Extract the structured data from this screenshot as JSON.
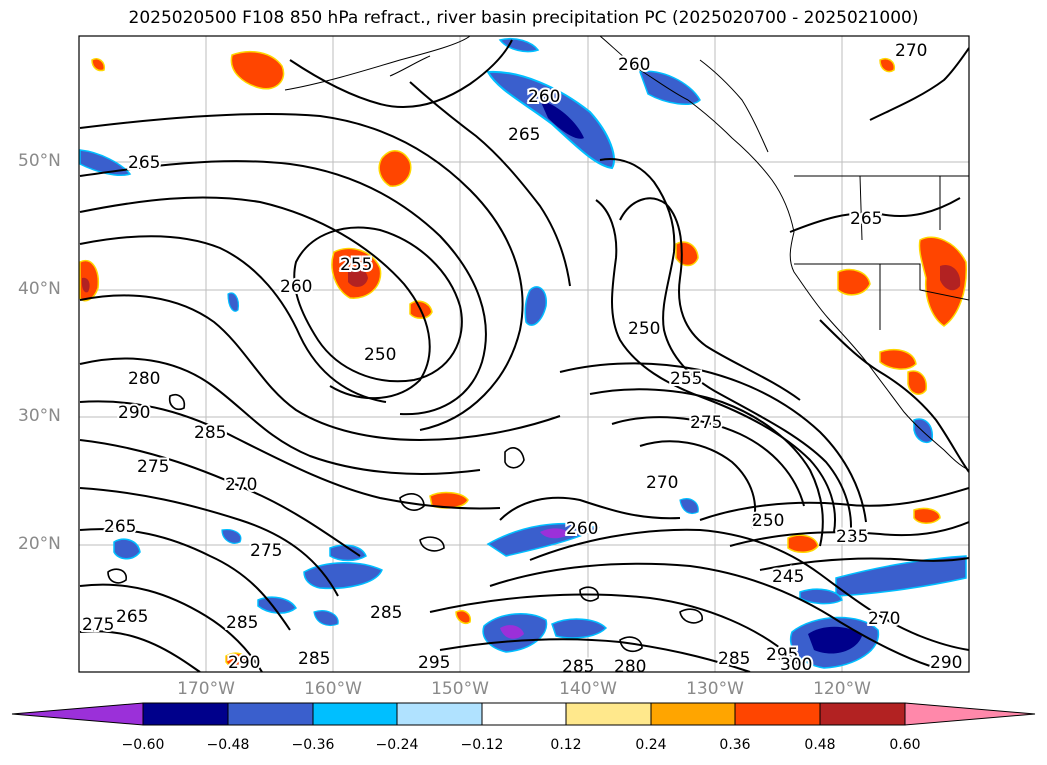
{
  "title": "2025020500 F108 850 hPa refract., river basin precipitation PC (2025020700 - 2025021000)",
  "latitude_labels": [
    "50°N",
    "40°N",
    "30°N",
    "20°N"
  ],
  "longitude_labels": [
    "170°W",
    "160°W",
    "150°W",
    "140°W",
    "130°W",
    "120°W"
  ],
  "contour_labels": [
    "270",
    "260",
    "265",
    "265",
    "255",
    "260",
    "250",
    "280",
    "290",
    "285",
    "275",
    "270",
    "265",
    "275",
    "275",
    "285",
    "265",
    "285",
    "290",
    "285",
    "295",
    "260",
    "250",
    "255",
    "275",
    "270",
    "250",
    "235",
    "245",
    "270",
    "285",
    "295",
    "300",
    "290",
    "280",
    "285",
    "265",
    "260"
  ],
  "colorbar": {
    "ticks": [
      "−0.60",
      "−0.48",
      "−0.36",
      "−0.24",
      "−0.12",
      "0.12",
      "0.24",
      "0.36",
      "0.48",
      "0.60"
    ],
    "colors": [
      "#9b30d9",
      "#00008b",
      "#3a5fcd",
      "#00bfff",
      "#b0e2ff",
      "#ffffff",
      "#ffe88c",
      "#ffa500",
      "#ff4500",
      "#b22222",
      "#ff88aa"
    ]
  }
}
